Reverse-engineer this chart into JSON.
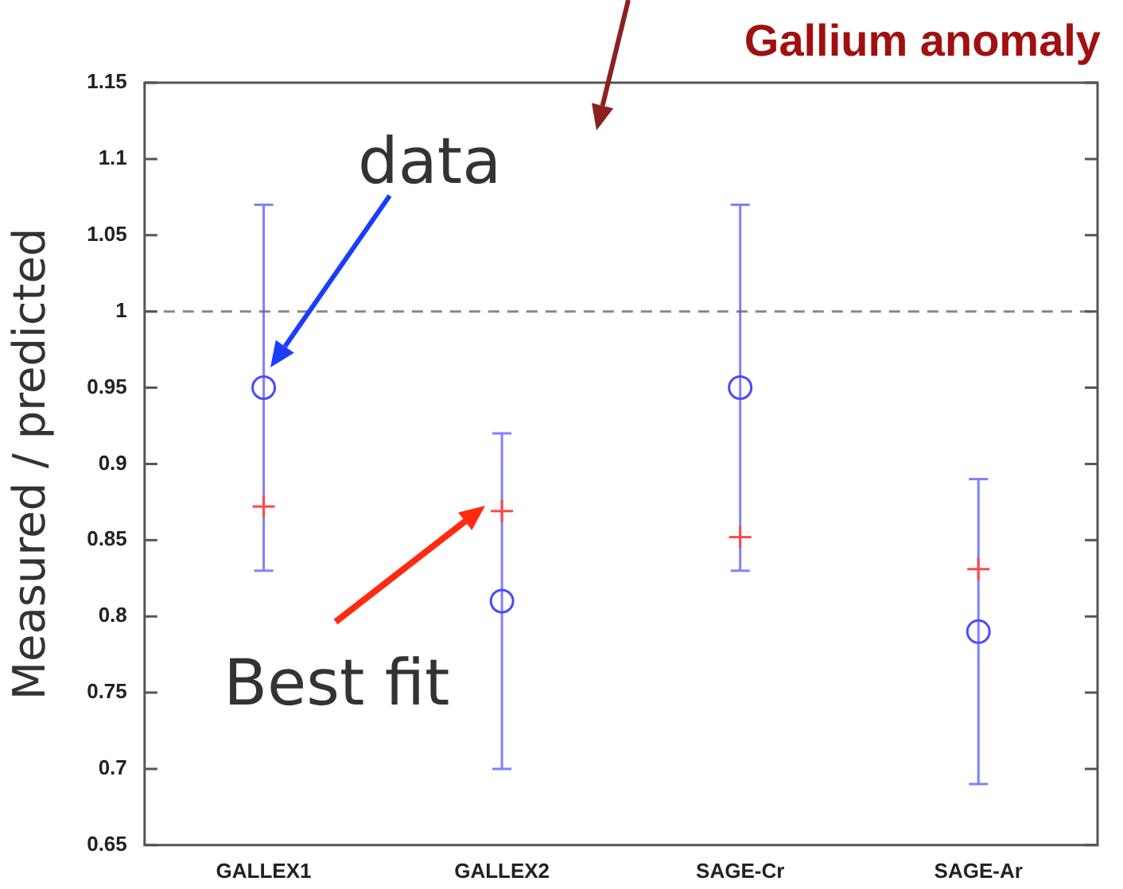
{
  "chart_data": {
    "type": "scatter",
    "title": "Gallium anomaly",
    "ylabel": "Measured / predicted",
    "categories": [
      "GALLEX1",
      "GALLEX2",
      "SAGE-Cr",
      "SAGE-Ar"
    ],
    "series": [
      {
        "color": "#4a4aff",
        "marker": "circle",
        "values": [
          0.95,
          0.81,
          0.95,
          0.79
        ],
        "errors": [
          [
            0.83,
            1.07
          ],
          [
            0.7,
            0.92
          ],
          [
            0.83,
            1.07
          ],
          [
            0.69,
            0.89
          ]
        ]
      },
      {
        "color": "#ff4a4a",
        "marker": "cross",
        "values": [
          0.872,
          0.869,
          0.852,
          0.831
        ]
      }
    ],
    "ylim": [
      0.65,
      1.15
    ],
    "yticks": [
      0.65,
      0.7,
      0.75,
      0.8,
      0.85,
      0.9,
      0.95,
      1,
      1.05,
      1.1,
      1.15
    ],
    "ref_lines": [
      {
        "axis": "y",
        "value": 1,
        "color": "#888888",
        "line_style": "dashed"
      }
    ],
    "annotations": [
      "data",
      {
        "text": "Best fit",
        "x": "GALLEX2",
        "y": 0.869
      }
    ],
    "grid": false,
    "legend": false
  }
}
